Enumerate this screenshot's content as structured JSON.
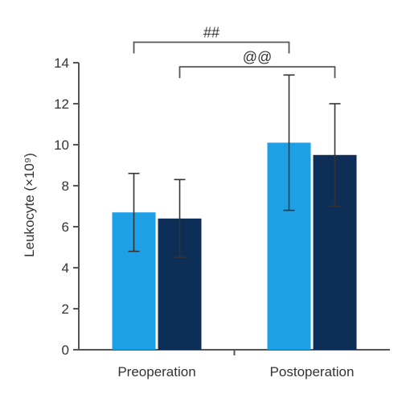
{
  "chart_data": {
    "type": "bar",
    "categories": [
      "Preoperation",
      "Postoperation"
    ],
    "ylabel": "Leukocyte (×10⁹)",
    "ylim": [
      0,
      14
    ],
    "yticks": [
      "0",
      "2",
      "4",
      "6",
      "8",
      "10",
      "12",
      "14"
    ],
    "grid": false,
    "series": [
      {
        "color": "#1ea0e6",
        "values": [
          6.7,
          10.1
        ],
        "error": [
          1.9,
          3.3
        ]
      },
      {
        "color": "#0d2f57",
        "values": [
          6.4,
          9.5
        ],
        "error": [
          1.9,
          2.5
        ]
      }
    ],
    "annotations": [
      {
        "label": "##",
        "from": [
          0,
          0
        ],
        "to": [
          1,
          0
        ],
        "level": 15.0
      },
      {
        "label": "@@",
        "from": [
          0,
          1
        ],
        "to": [
          1,
          1
        ],
        "level": 13.8
      }
    ]
  }
}
